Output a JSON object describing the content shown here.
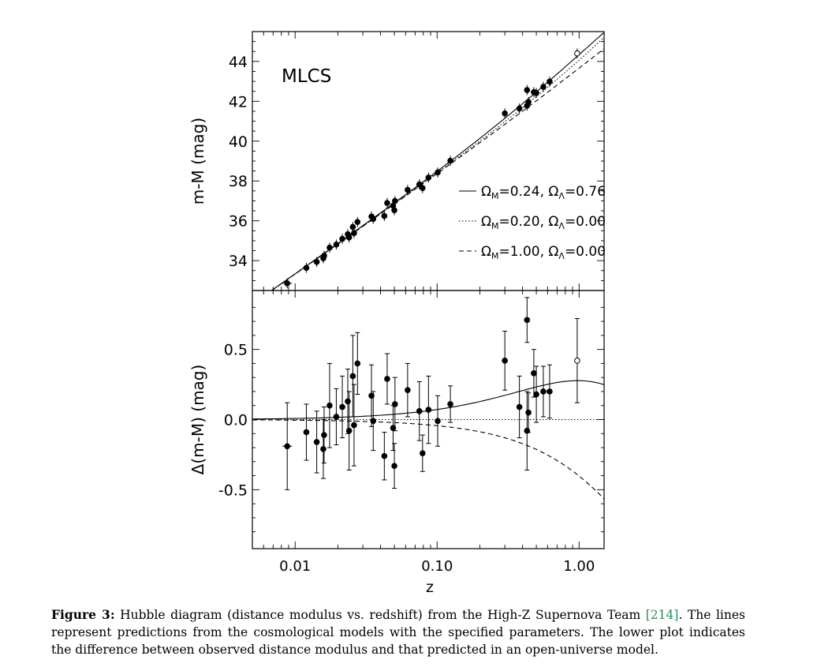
{
  "chart_data": [
    {
      "type": "scatter",
      "panel": "top",
      "annotation": "MLCS",
      "ylabel": "m-M (mag)",
      "xscale": "log",
      "xlim": [
        0.005,
        1.5
      ],
      "ylim": [
        32.5,
        45.5
      ],
      "yticks": [
        "34",
        "36",
        "38",
        "40",
        "42",
        "44"
      ],
      "legend_position": "right",
      "legend": [
        {
          "line": "solid",
          "label": "Ω_M=0.24, Ω_Λ=0.76"
        },
        {
          "line": "dotted",
          "label": "Ω_M=0.20, Ω_Λ=0.00"
        },
        {
          "line": "dashed",
          "label": "Ω_M=1.00, Ω_Λ=0.00"
        }
      ],
      "models": [
        {
          "style": "solid",
          "omega_m": 0.24,
          "omega_l": 0.76
        },
        {
          "style": "dotted",
          "omega_m": 0.2,
          "omega_l": 0.0
        },
        {
          "style": "dashed",
          "omega_m": 1.0,
          "omega_l": 0.0
        }
      ]
    },
    {
      "type": "scatter",
      "panel": "bottom",
      "xlabel": "z",
      "ylabel": "Δ(m-M) (mag)",
      "xscale": "log",
      "xlim": [
        0.005,
        1.5
      ],
      "ylim": [
        -0.92,
        0.92
      ],
      "xticks": [
        "0.01",
        "0.10",
        "1.00"
      ],
      "yticks": [
        "-0.5",
        "0.0",
        "0.5"
      ],
      "points": [
        {
          "z": 0.0088,
          "dy": -0.19,
          "err": 0.31,
          "xerr": true
        },
        {
          "z": 0.012,
          "dy": -0.09,
          "err": 0.2
        },
        {
          "z": 0.0142,
          "dy": -0.16,
          "err": 0.22
        },
        {
          "z": 0.0158,
          "dy": -0.21,
          "err": 0.21
        },
        {
          "z": 0.016,
          "dy": -0.11,
          "err": 0.2
        },
        {
          "z": 0.0175,
          "dy": 0.1,
          "err": 0.3
        },
        {
          "z": 0.0195,
          "dy": 0.02,
          "err": 0.2
        },
        {
          "z": 0.0215,
          "dy": 0.09,
          "err": 0.22
        },
        {
          "z": 0.0235,
          "dy": 0.13,
          "err": 0.23
        },
        {
          "z": 0.024,
          "dy": -0.08,
          "err": 0.28
        },
        {
          "z": 0.0255,
          "dy": 0.31,
          "err": 0.29
        },
        {
          "z": 0.026,
          "dy": -0.04,
          "err": 0.29
        },
        {
          "z": 0.0275,
          "dy": 0.4,
          "err": 0.22
        },
        {
          "z": 0.0345,
          "dy": 0.17,
          "err": 0.22
        },
        {
          "z": 0.0355,
          "dy": -0.01,
          "err": 0.21
        },
        {
          "z": 0.0425,
          "dy": -0.26,
          "err": 0.17
        },
        {
          "z": 0.0445,
          "dy": 0.29,
          "err": 0.18
        },
        {
          "z": 0.049,
          "dy": -0.06,
          "err": 0.16
        },
        {
          "z": 0.05,
          "dy": -0.33,
          "err": 0.16
        },
        {
          "z": 0.0505,
          "dy": 0.11,
          "err": 0.19
        },
        {
          "z": 0.062,
          "dy": 0.21,
          "err": 0.19
        },
        {
          "z": 0.075,
          "dy": 0.06,
          "err": 0.21
        },
        {
          "z": 0.079,
          "dy": -0.24,
          "err": 0.13
        },
        {
          "z": 0.087,
          "dy": 0.07,
          "err": 0.24
        },
        {
          "z": 0.101,
          "dy": -0.01,
          "err": 0.18
        },
        {
          "z": 0.124,
          "dy": 0.11,
          "err": 0.13
        },
        {
          "z": 0.3,
          "dy": 0.42,
          "err": 0.21
        },
        {
          "z": 0.38,
          "dy": 0.09,
          "err": 0.22
        },
        {
          "z": 0.43,
          "dy": -0.08,
          "err": 0.28
        },
        {
          "z": 0.43,
          "dy": 0.71,
          "err": 0.16
        },
        {
          "z": 0.44,
          "dy": 0.05,
          "err": 0.14
        },
        {
          "z": 0.48,
          "dy": 0.33,
          "err": 0.17
        },
        {
          "z": 0.5,
          "dy": 0.18,
          "err": 0.2
        },
        {
          "z": 0.56,
          "dy": 0.2,
          "err": 0.18
        },
        {
          "z": 0.62,
          "dy": 0.2,
          "err": 0.19
        },
        {
          "z": 0.97,
          "dy": 0.42,
          "err": 0.3,
          "open": true
        }
      ]
    }
  ],
  "caption": {
    "label": "Figure 3:",
    "text1": "Hubble diagram (distance modulus vs. redshift) from the High-Z Supernova Team ",
    "cite": "[214]",
    "text2": ". The lines represent predictions from the cosmological models with the specified parameters. The lower plot indicates the difference between observed distance modulus and that predicted in an open-universe model."
  }
}
